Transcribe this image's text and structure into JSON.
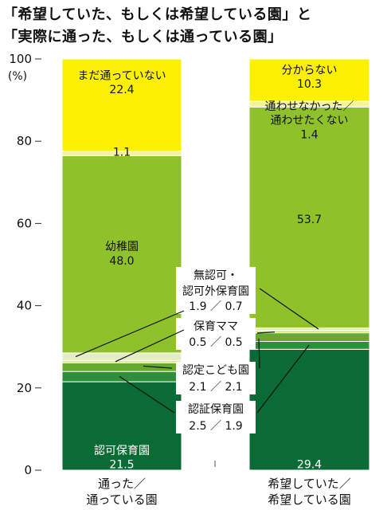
{
  "title_line1": "「希望していた、もしくは希望している園」と",
  "title_line2": "「実際に通った、もしくは通っている園」",
  "chart_data": {
    "type": "bar",
    "stacked": true,
    "ylim": [
      0,
      100
    ],
    "y_ticks": [
      0,
      20,
      40,
      60,
      80,
      100
    ],
    "y_unit": "(%)",
    "categories": [
      [
        "通った／",
        "通っている園"
      ],
      [
        "希望していた／",
        "希望している園"
      ]
    ],
    "series": [
      {
        "name": "認可保育園",
        "color": "#0b6b34",
        "values": [
          21.5,
          29.4
        ]
      },
      {
        "name": "認証保育園",
        "color": "#2f8e3a",
        "values": [
          2.5,
          1.9
        ]
      },
      {
        "name": "認定こども園",
        "color": "#67a82e",
        "values": [
          2.1,
          2.1
        ]
      },
      {
        "name": "保育ママ",
        "color": "#c9e37c",
        "values": [
          0.5,
          0.5
        ]
      },
      {
        "name": "無認可・認可外保育園",
        "color": "#e3efc3",
        "values": [
          1.9,
          0.7
        ]
      },
      {
        "name": "幼稚園",
        "color": "#8fc12b",
        "values": [
          48.0,
          53.7
        ]
      },
      {
        "name": "通わせなかった／通わせたくない",
        "color": "#f2f2a0",
        "values": [
          1.1,
          1.4
        ]
      },
      {
        "name": "まだ通っていない／分からない",
        "color": "#fbf000",
        "values": [
          22.4,
          10.3
        ]
      }
    ],
    "labels": {
      "bar1_unvisited_name": "まだ通っていない",
      "bar1_unvisited_value": "22.4",
      "bar1_notattend_value": "1.1",
      "bar1_kinder_name": "幼稚園",
      "bar1_kinder_value": "48.0",
      "bar1_ninka_name": "認可保育園",
      "bar1_ninka_value": "21.5",
      "bar2_unknown_name": "分からない",
      "bar2_unknown_value": "10.3",
      "bar2_notattend_name1": "通わせなかった／",
      "bar2_notattend_name2": "通わせたくない",
      "bar2_notattend_value": "1.4",
      "bar2_kinder_value": "53.7",
      "bar2_ninka_value": "29.4",
      "mid_muninka_name1": "無認可・",
      "mid_muninka_name2": "認可外保育園",
      "mid_muninka_values": "1.9 ／ 0.7",
      "mid_hoikumama_name": "保育ママ",
      "mid_hoikumama_values": "0.5 ／ 0.5",
      "mid_nintei_name": "認定こども園",
      "mid_nintei_values": "2.1 ／ 2.1",
      "mid_ninsho_name": "認証保育園",
      "mid_ninsho_values": "2.5 ／ 1.9"
    }
  }
}
